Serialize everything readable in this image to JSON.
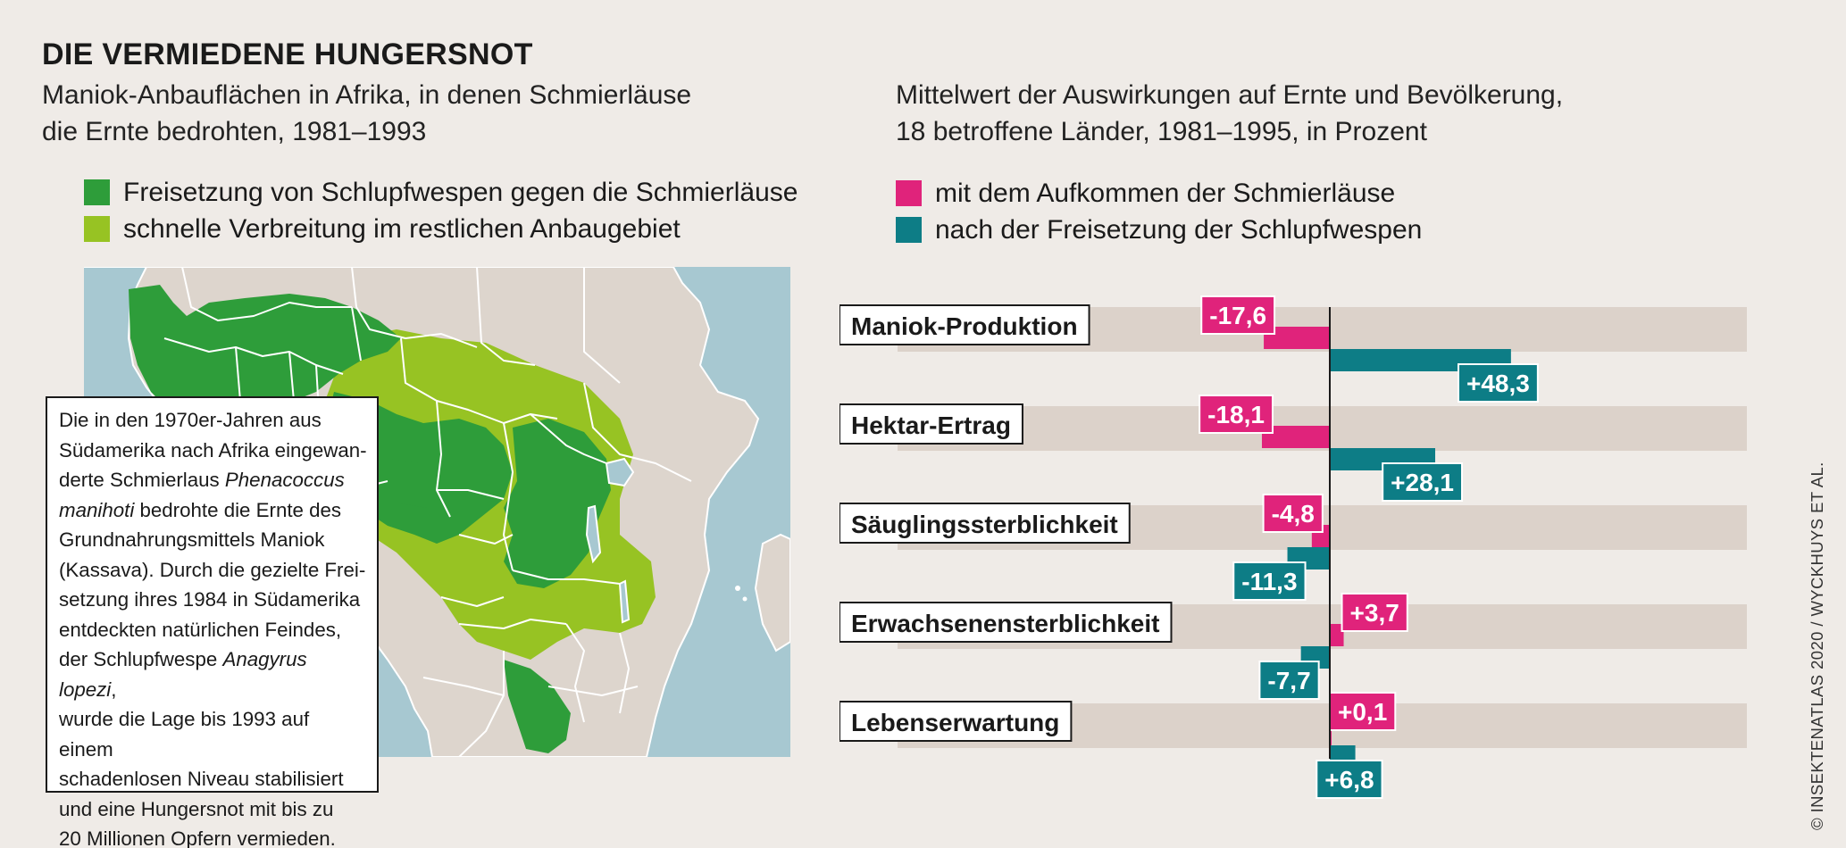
{
  "title": "DIE VERMIEDENE HUNGERSNOT",
  "map": {
    "subtitle_line1": "Maniok-Anbauflächen in Afrika, in denen Schmierläuse",
    "subtitle_line2": "die Ernte bedrohten, 1981–1993",
    "legend": [
      {
        "label": "Freisetzung von Schlupfwespen gegen die Schmierläuse",
        "color": "#2e9d3a"
      },
      {
        "label": "schnelle Verbreitung im restlichen Anbaugebiet",
        "color": "#97c323"
      }
    ],
    "colors": {
      "ocean": "#a7c8d1",
      "land": "#ddd5cd",
      "border": "#ffffff"
    }
  },
  "info_box": {
    "lines": [
      {
        "parts": [
          {
            "t": "Die in den 1970er-Jahren aus"
          }
        ]
      },
      {
        "parts": [
          {
            "t": "Südamerika nach Afrika eingewan-"
          }
        ]
      },
      {
        "parts": [
          {
            "t": "derte Schmierlaus "
          },
          {
            "t": "Phenacoccus",
            "i": true
          }
        ]
      },
      {
        "parts": [
          {
            "t": "manihoti",
            "i": true
          },
          {
            "t": " bedrohte die Ernte des"
          }
        ]
      },
      {
        "parts": [
          {
            "t": "Grundnahrungsmittels Maniok"
          }
        ]
      },
      {
        "parts": [
          {
            "t": "(Kassava). Durch die gezielte Frei-"
          }
        ]
      },
      {
        "parts": [
          {
            "t": "setzung ihres 1984 in Südamerika"
          }
        ]
      },
      {
        "parts": [
          {
            "t": "entdeckten natürlichen Feindes,"
          }
        ]
      },
      {
        "parts": [
          {
            "t": "der Schlupfwespe "
          },
          {
            "t": "Anagyrus lopezi",
            "i": true
          },
          {
            "t": ","
          }
        ]
      },
      {
        "parts": [
          {
            "t": "wurde die Lage bis 1993 auf einem"
          }
        ]
      },
      {
        "parts": [
          {
            "t": "schadenlosen Niveau stabilisiert"
          }
        ]
      },
      {
        "parts": [
          {
            "t": "und eine Hungersnot mit bis zu"
          }
        ]
      },
      {
        "parts": [
          {
            "t": "20 Millionen Opfern vermieden."
          }
        ]
      }
    ]
  },
  "chart": {
    "subtitle_line1": "Mittelwert der Auswirkungen auf Ernte und Bevölkerung,",
    "subtitle_line2": "18 betroffene Länder, 1981–1995, in Prozent",
    "legend": [
      {
        "label": "mit dem Aufkommen der Schmierläuse",
        "color": "#e0237b"
      },
      {
        "label": "nach der Freisetzung der Schlupfwespen",
        "color": "#0d7d86"
      }
    ]
  },
  "chart_data": {
    "type": "bar",
    "orientation": "horizontal",
    "title": "Mittelwert der Auswirkungen auf Ernte und Bevölkerung, 18 betroffene Länder, 1981–1995, in Prozent",
    "categories": [
      "Maniok-Produktion",
      "Hektar-Ertrag",
      "Säuglingssterblichkeit",
      "Erwachsenensterblichkeit",
      "Lebenserwartung"
    ],
    "series": [
      {
        "name": "mit dem Aufkommen der Schmierläuse",
        "color": "#e0237b",
        "values": [
          -17.6,
          -18.1,
          -4.8,
          3.7,
          0.1
        ],
        "labels": [
          "-17,6",
          "-18,1",
          "-4,8",
          "+3,7",
          "+0,1"
        ]
      },
      {
        "name": "nach der Freisetzung der Schlupfwespen",
        "color": "#0d7d86",
        "values": [
          48.3,
          28.1,
          -11.3,
          -7.7,
          6.8
        ],
        "labels": [
          "+48,3",
          "+28,1",
          "-11,3",
          "-7,7",
          "+6,8"
        ]
      }
    ],
    "xlim": [
      -100,
      100
    ],
    "band_color": "#dcd2ca"
  },
  "credit": "© INSEKTENATLAS 2020 / WYCKHUYS ET AL."
}
